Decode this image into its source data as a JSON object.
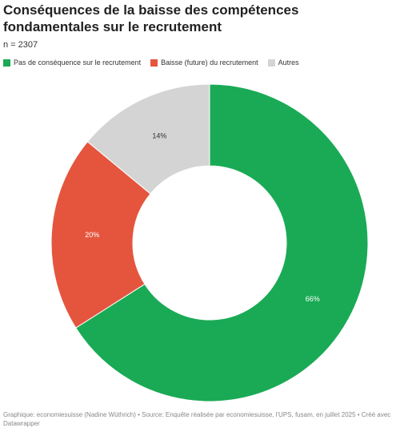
{
  "chart_data": {
    "type": "pie",
    "title": "Conséquences de la baisse des compétences fondamentales sur le recrutement",
    "subtitle": "n = 2307",
    "categories": [
      "Pas de conséquence sur le recrutement",
      "Baisse (future) du recrutement",
      "Autres"
    ],
    "values": [
      66,
      20,
      14
    ],
    "value_labels": [
      "66%",
      "20%",
      "14%"
    ],
    "colors": [
      "#1aaa55",
      "#e5553e",
      "#d4d4d4"
    ],
    "label_colors": [
      "#ffffff",
      "#ffffff",
      "#333333"
    ],
    "source": "Graphique: economiesuisse (Nadine Wüthrich) • Source: Enquête réalisée par economiesuisse, l'UPS, fusam, en juillet 2025 • Créé avec Datawrapper"
  }
}
